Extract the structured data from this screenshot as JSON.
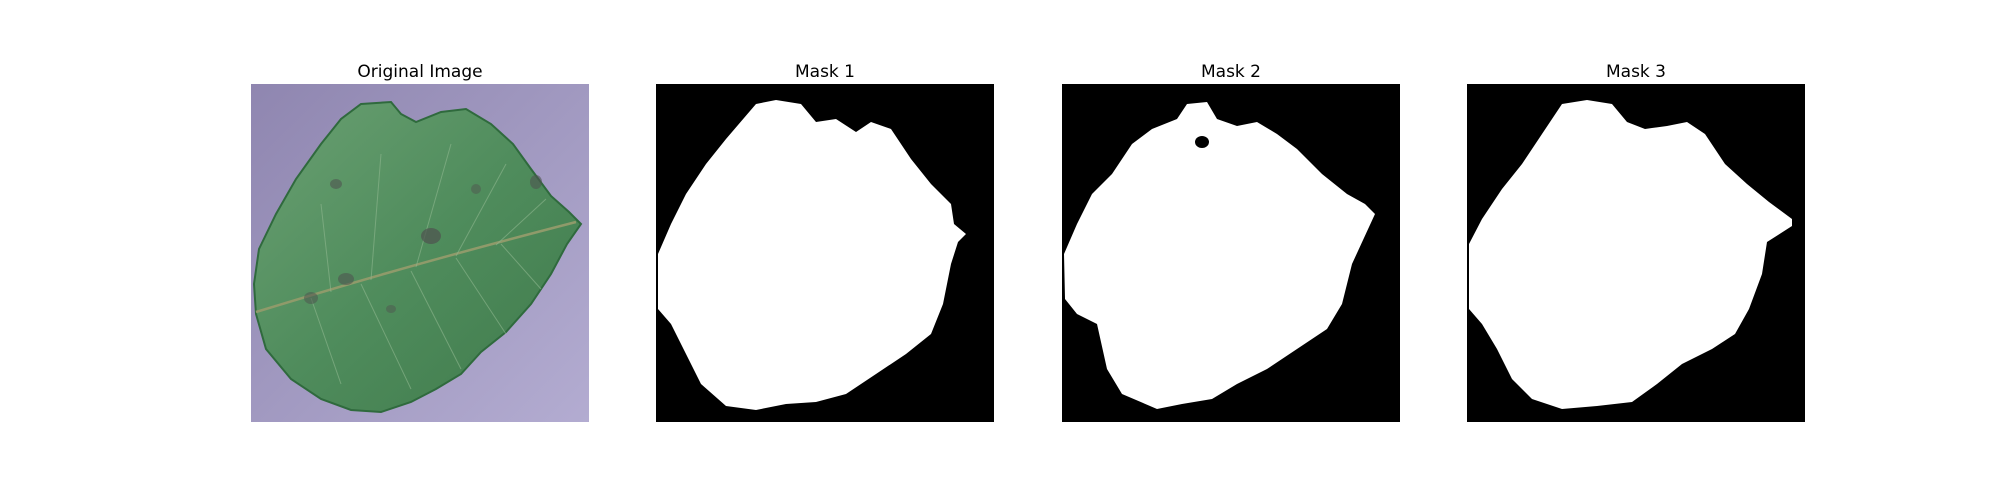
{
  "figure": {
    "panels": [
      {
        "title": "Original Image",
        "kind": "photo"
      },
      {
        "title": "Mask 1",
        "kind": "mask"
      },
      {
        "title": "Mask 2",
        "kind": "mask"
      },
      {
        "title": "Mask 3",
        "kind": "mask"
      }
    ]
  },
  "colors": {
    "photo_background": "#a79fc6",
    "leaf_dark": "#3f7a4b",
    "leaf_light": "#6aa072",
    "leaf_vein": "#8f9a6a",
    "lesion": "#4f5550",
    "mask_background": "#000000",
    "mask_foreground": "#ffffff"
  }
}
